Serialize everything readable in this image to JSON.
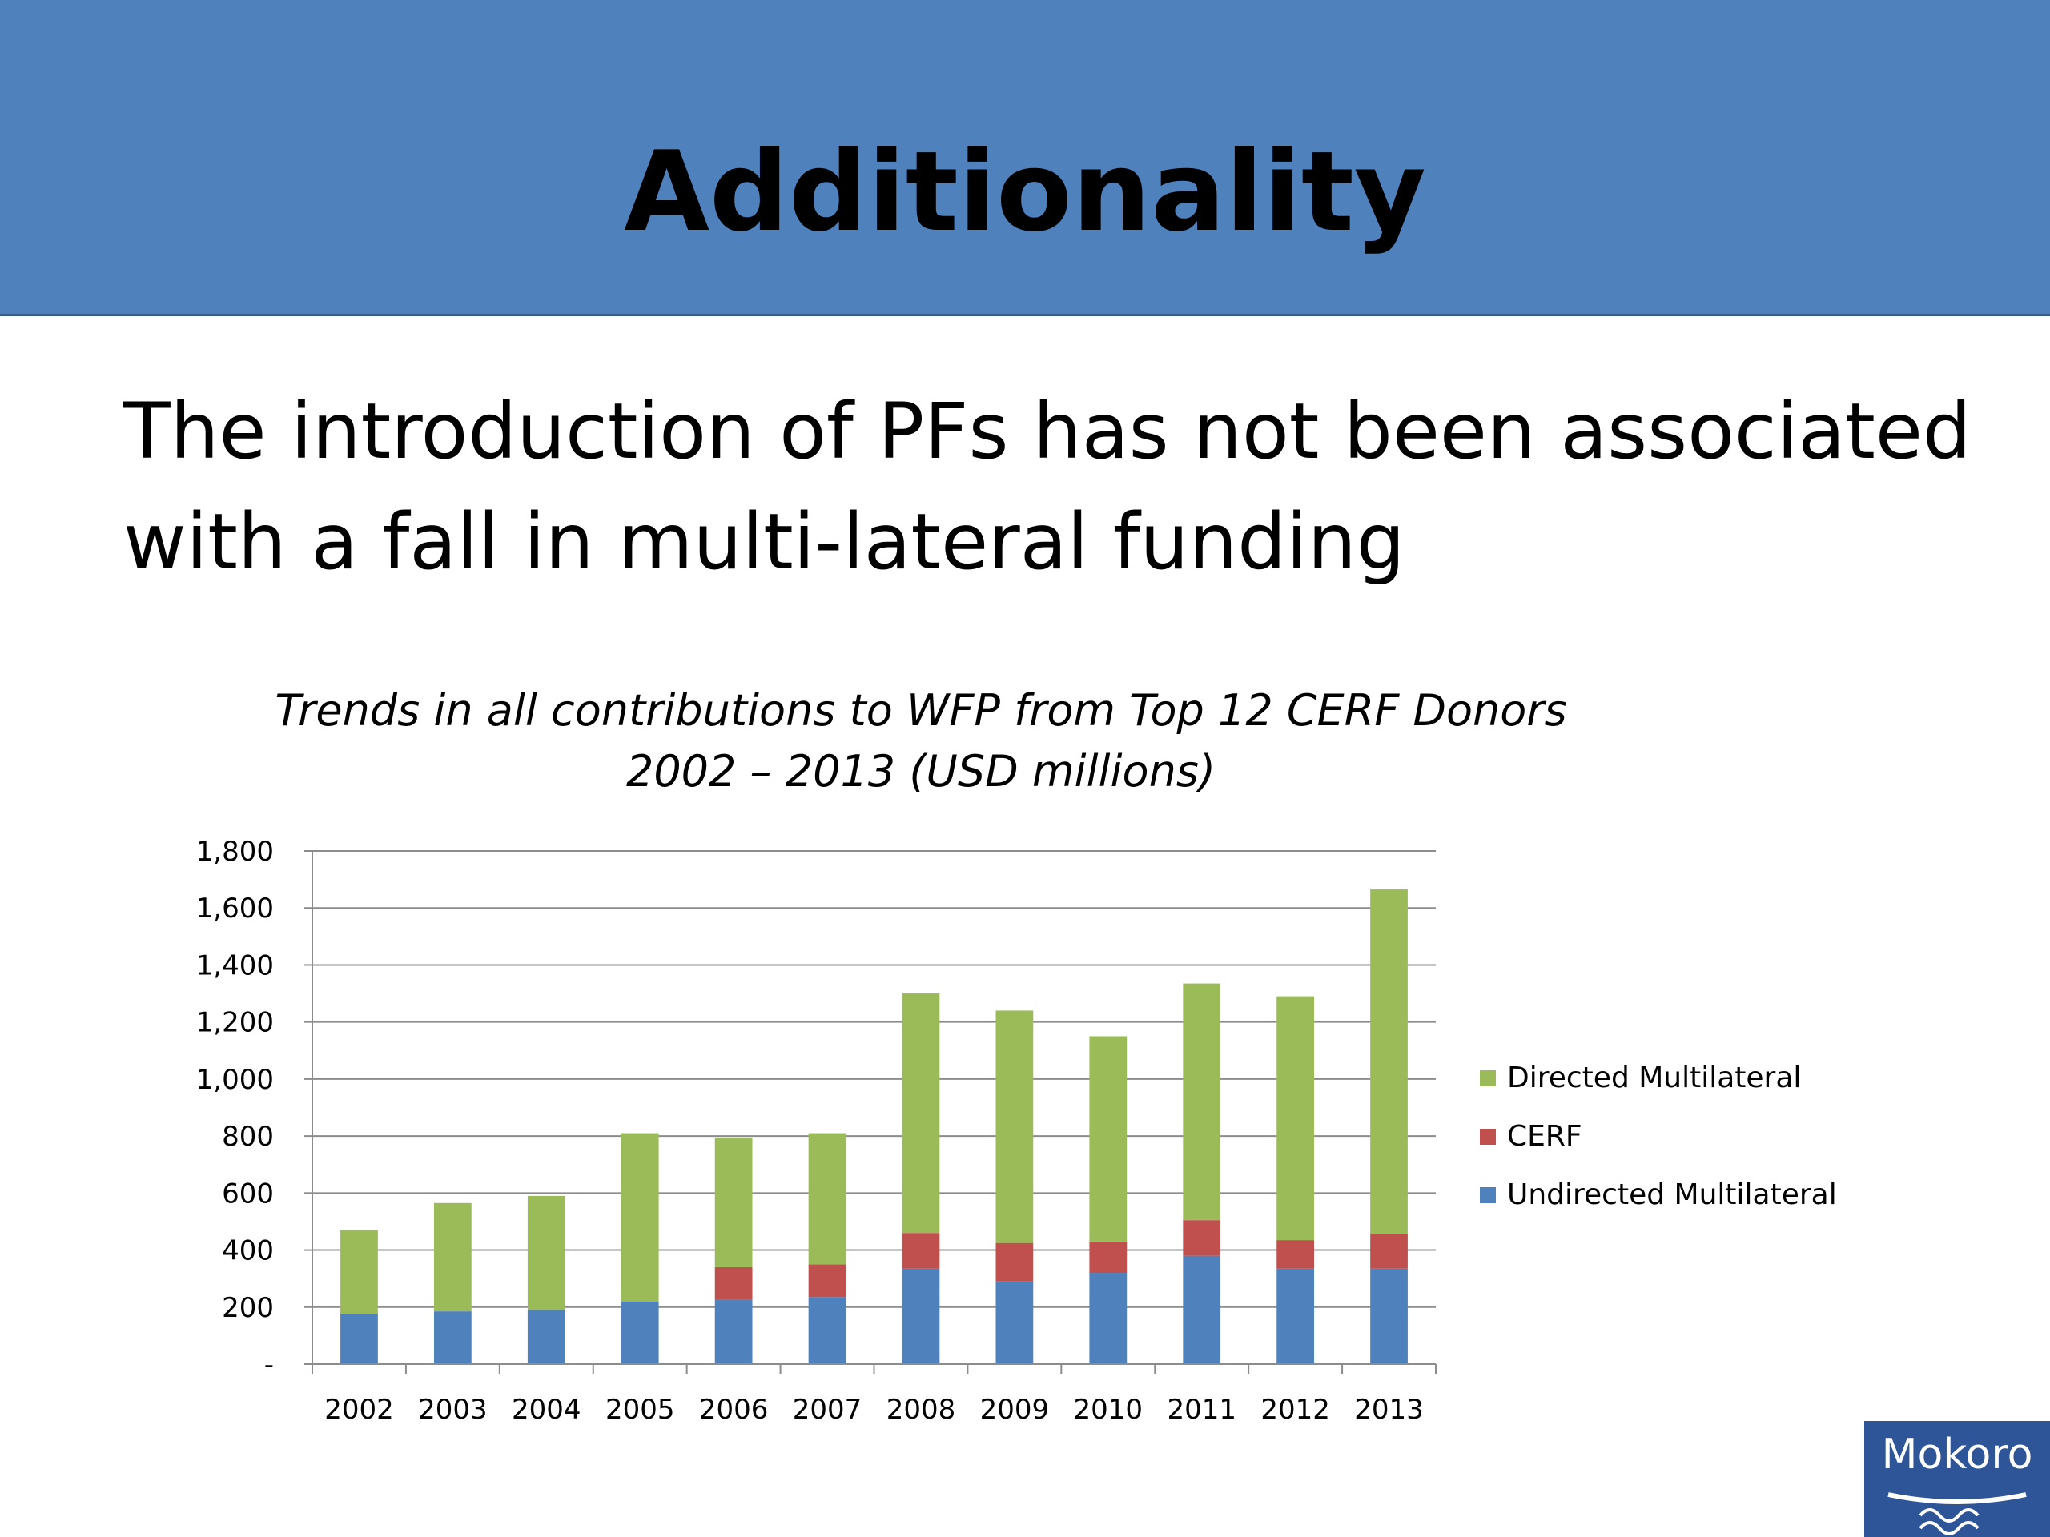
{
  "slide": {
    "title": "Additionality",
    "body_lines": [
      "The introduction of PFs has not been associated",
      "with a fall in multi-lateral funding"
    ],
    "logo_text": "Mokoro"
  },
  "colors": {
    "title_band": "#4f81bd",
    "directed": "#9bbb59",
    "cerf": "#c0504d",
    "undirected": "#4f81bd",
    "logo": "#2e5597"
  },
  "chart_data": {
    "type": "bar",
    "stacked": true,
    "title_lines": [
      "Trends in all contributions to WFP from Top 12 CERF Donors",
      "2002 – 2013 (USD millions)"
    ],
    "categories": [
      "2002",
      "2003",
      "2004",
      "2005",
      "2006",
      "2007",
      "2008",
      "2009",
      "2010",
      "2011",
      "2012",
      "2013"
    ],
    "series": [
      {
        "name": "Undirected Multilateral",
        "color": "#4f81bd",
        "values": [
          175,
          185,
          190,
          220,
          225,
          235,
          335,
          290,
          320,
          380,
          335,
          335
        ]
      },
      {
        "name": "CERF",
        "color": "#c0504d",
        "values": [
          0,
          0,
          0,
          0,
          115,
          115,
          125,
          135,
          110,
          125,
          100,
          120
        ]
      },
      {
        "name": "Directed Multilateral",
        "color": "#9bbb59",
        "values": [
          295,
          380,
          400,
          590,
          455,
          460,
          840,
          815,
          720,
          830,
          855,
          1210
        ]
      }
    ],
    "yticks": [
      "-",
      "200",
      "400",
      "600",
      "800",
      "1,000",
      "1,200",
      "1,400",
      "1,600",
      "1,800"
    ],
    "ylim": [
      0,
      1800
    ],
    "grid": true,
    "legend_position": "right",
    "legend_order": [
      "Directed Multilateral",
      "CERF",
      "Undirected Multilateral"
    ]
  }
}
